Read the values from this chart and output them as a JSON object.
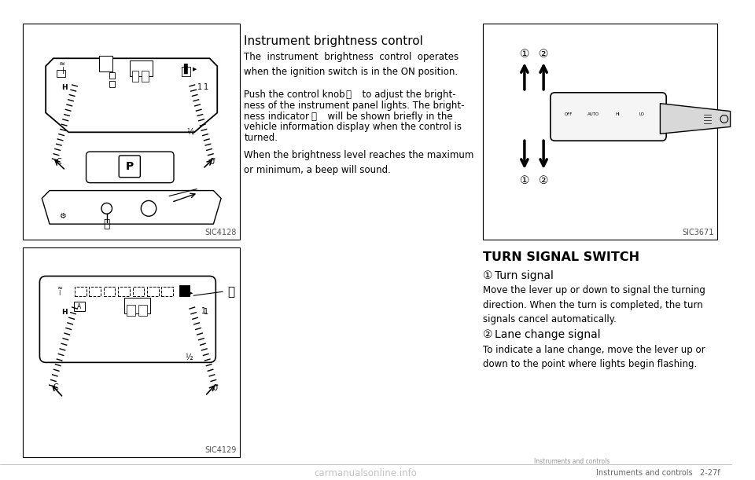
{
  "background_color": "#ffffff",
  "title_instrument": "Instrument brightness control",
  "para1": "The  instrument  brightness  control  operates\nwhen the ignition switch is in the ON position.",
  "para2a": "Push the control knob ",
  "para2_circA": "⑀0",
  "para2b": "  to adjust the bright-\nness of the instrument panel lights. The bright-\nness indicator ",
  "para2_circB": "⑀1",
  "para2c": "  will be shown briefly in the\nvehicle information display when the control is\nturned.",
  "para3": "When the brightness level reaches the maximum\nor minimum, a beep will sound.",
  "turn_signal_title": "TURN SIGNAL SWITCH",
  "ts_item1_head": " Turn signal",
  "ts_item1_body": "Move the lever up or down to signal the turning\ndirection. When the turn is completed, the turn\nsignals cancel automatically.",
  "ts_item2_head": " Lane change signal",
  "ts_item2_body": "To indicate a lane change, move the lever up or\ndown to the point where lights begin flashing.",
  "watermark": "carmanualsonline.info",
  "footer": "Instruments and controls   2-27f",
  "sic1": "SIC4128",
  "sic2": "SIC4129",
  "sic3": "SIC3671",
  "circA": "⑀0",
  "circB": "⑀1",
  "circ1": "①",
  "circ2": "②"
}
